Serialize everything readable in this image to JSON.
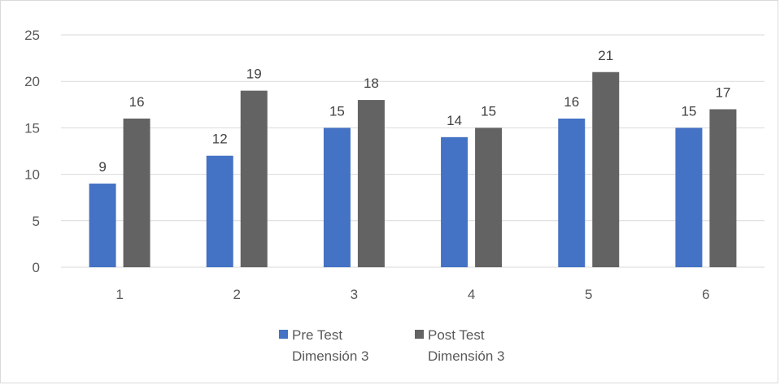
{
  "chart_data": {
    "type": "bar",
    "categories": [
      "1",
      "2",
      "3",
      "4",
      "5",
      "6"
    ],
    "series": [
      {
        "name": "Pre Test Dimensión 3",
        "legend_lines": [
          "Pre Test",
          "Dimensión 3"
        ],
        "color": "#4472c4",
        "values": [
          9,
          12,
          15,
          14,
          16,
          15
        ]
      },
      {
        "name": "Post Test Dimensión 3",
        "legend_lines": [
          "Post Test",
          "Dimensión 3"
        ],
        "color": "#636363",
        "values": [
          16,
          19,
          18,
          15,
          21,
          17
        ]
      }
    ],
    "title": "",
    "xlabel": "",
    "ylabel": "",
    "ylim": [
      0,
      25
    ],
    "yticks": [
      0,
      5,
      10,
      15,
      20,
      25
    ],
    "grid": true,
    "gridline_color": "#d9d9d9",
    "data_labels": true,
    "legend_position": "bottom"
  }
}
